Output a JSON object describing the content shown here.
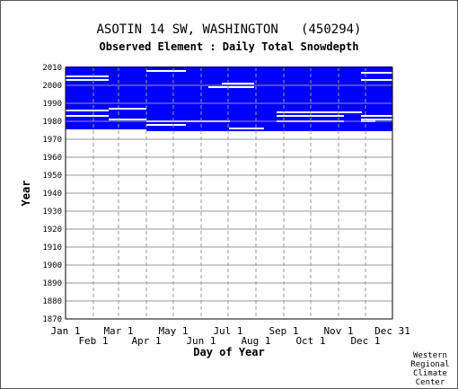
{
  "chart_data": {
    "type": "heatmap",
    "title": "ASOTIN 14 SW, WASHINGTON   (450294)",
    "subtitle": "Observed Element : Daily Total Snowdepth",
    "xlabel": "Day of Year",
    "ylabel": "Year",
    "xlim": [
      1,
      365
    ],
    "ylim": [
      1870,
      2010
    ],
    "x_ticks_top": [
      "Jan 1",
      "Mar 1",
      "May 1",
      "Jul 1",
      "Sep 1",
      "Nov 1",
      "Dec 31"
    ],
    "x_ticks_top_days": [
      1,
      60,
      121,
      182,
      244,
      305,
      365
    ],
    "x_ticks_bottom": [
      "Feb 1",
      "Apr 1",
      "Jun 1",
      "Aug 1",
      "Oct 1",
      "Dec 1"
    ],
    "x_ticks_bottom_days": [
      32,
      91,
      152,
      213,
      274,
      335
    ],
    "y_ticks": [
      1870,
      1880,
      1890,
      1900,
      1910,
      1920,
      1930,
      1940,
      1950,
      1960,
      1970,
      1980,
      1990,
      2000,
      2010
    ],
    "grid": true,
    "fill_color": "#0000ff",
    "gap_color": "#ffffff",
    "series": [
      {
        "start_year_by_day_range": [
          {
            "from": 1,
            "to": 48,
            "start_year": 1976
          },
          {
            "from": 49,
            "to": 90,
            "start_year": 1976
          },
          {
            "from": 91,
            "to": 214,
            "start_year": 1975
          },
          {
            "from": 215,
            "to": 365,
            "start_year": 1975
          }
        ],
        "end_year": 2010,
        "gaps": [
          {
            "from": 1,
            "to": 48,
            "year": 1983
          },
          {
            "from": 1,
            "to": 48,
            "year": 1986
          },
          {
            "from": 1,
            "to": 48,
            "year": 2003
          },
          {
            "from": 1,
            "to": 48,
            "year": 2005
          },
          {
            "from": 49,
            "to": 90,
            "year": 1981
          },
          {
            "from": 49,
            "to": 90,
            "year": 1987
          },
          {
            "from": 91,
            "to": 134,
            "year": 1978
          },
          {
            "from": 91,
            "to": 134,
            "year": 1980
          },
          {
            "from": 91,
            "to": 134,
            "year": 2008
          },
          {
            "from": 134,
            "to": 183,
            "year": 1980
          },
          {
            "from": 236,
            "to": 310,
            "year": 1980
          },
          {
            "from": 236,
            "to": 310,
            "year": 1983
          },
          {
            "from": 236,
            "to": 310,
            "year": 1985
          },
          {
            "from": 183,
            "to": 221,
            "year": 1976
          },
          {
            "from": 304,
            "to": 330,
            "year": 1985
          },
          {
            "from": 330,
            "to": 345,
            "year": 1983
          },
          {
            "from": 330,
            "to": 345,
            "year": 1980
          },
          {
            "from": 330,
            "to": 365,
            "year": 2007
          },
          {
            "from": 330,
            "to": 365,
            "year": 2003
          },
          {
            "from": 330,
            "to": 365,
            "year": 1981
          },
          {
            "from": 340,
            "to": 365,
            "year": 1983
          },
          {
            "from": 160,
            "to": 210,
            "year": 1999
          },
          {
            "from": 175,
            "to": 210,
            "year": 2001
          }
        ]
      }
    ]
  },
  "credit": "Western\nRegional\nClimate\nCenter"
}
